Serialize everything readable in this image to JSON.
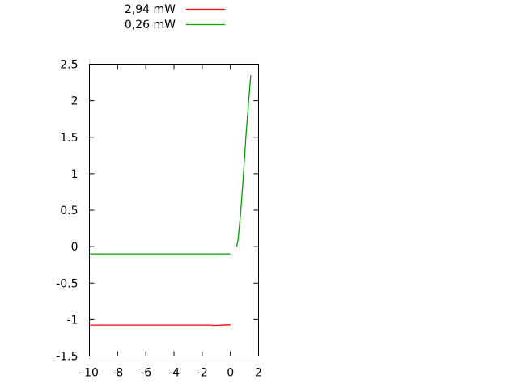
{
  "chart_data": {
    "type": "line",
    "title": "",
    "xlabel": "",
    "ylabel": "",
    "xlim": [
      -10,
      2
    ],
    "ylim": [
      -1.5,
      2.5
    ],
    "xticks": [
      "-10",
      "-8",
      "-6",
      "-4",
      "-2",
      "0",
      "2"
    ],
    "yticks": [
      "-1.5",
      "-1",
      "-0.5",
      "0",
      "0.5",
      "1",
      "1.5",
      "2",
      "2.5"
    ],
    "grid": false,
    "legend_position": "top-left outside",
    "series": [
      {
        "name": "2,94 mW",
        "color": "#ff0000",
        "x": [
          -10,
          -1.3,
          -1.2,
          0
        ],
        "y": [
          -1.075,
          -1.075,
          -1.08,
          -1.07
        ]
      },
      {
        "name": "0,26 mW",
        "color": "#00a000",
        "x": [
          -10,
          0,
          null,
          0.45,
          0.55,
          0.7,
          0.9,
          1.1,
          1.3,
          1.45
        ],
        "y": [
          -0.1,
          -0.1,
          null,
          0,
          0.1,
          0.4,
          0.9,
          1.5,
          2.0,
          2.35
        ]
      }
    ]
  }
}
